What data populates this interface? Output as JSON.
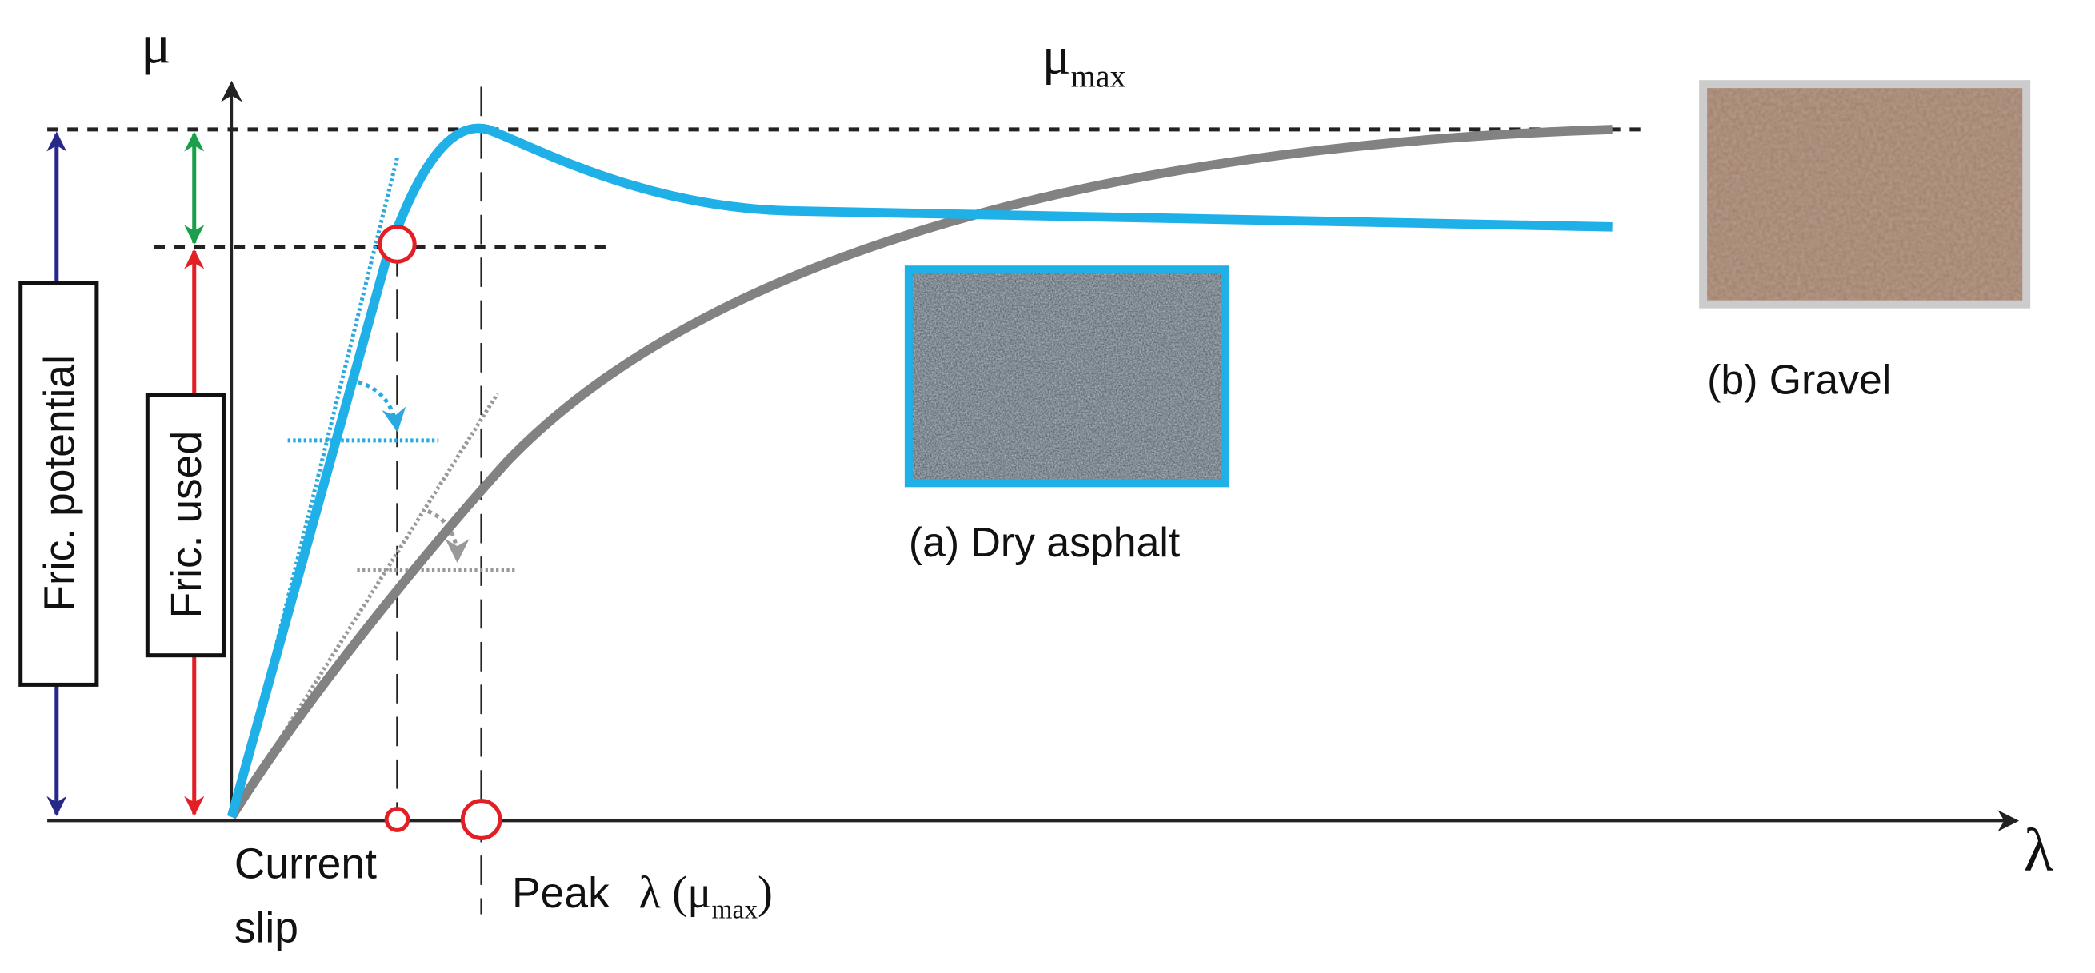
{
  "axes": {
    "y_label": "μ",
    "x_label": "λ"
  },
  "annotations": {
    "mu_max": {
      "symbol": "μ",
      "subscript": "max"
    },
    "friction_potential": "Fric. potential",
    "friction_used": "Fric. used",
    "current_slip": [
      "Current",
      "slip"
    ],
    "peak": {
      "text": "Peak",
      "symbol": "λ (μ",
      "subscript": "max",
      "close": ")"
    }
  },
  "surfaces": [
    {
      "label": "(a) Dry asphalt"
    },
    {
      "label": "(b) Gravel"
    }
  ]
}
